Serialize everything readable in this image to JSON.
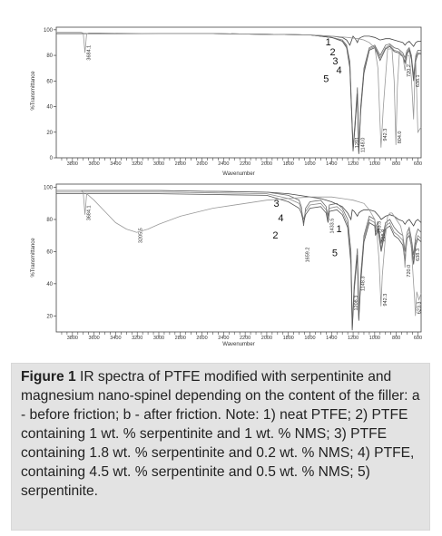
{
  "figure": {
    "caption_label": "Figure 1",
    "caption_text": " IR spectra of PTFE modified with serpentinite and magnesium nano-spinel depending on the content of the filler: a - before friction; b - after friction. Note: 1) neat PTFE; 2) PTFE containing 1 wt. % serpentinite and 1 wt. % NMS; 3) PTFE containing 1.8 wt. % serpentinite and 0.2 wt. % NMS; 4) PTFE, containing 4.5 wt. % serpentinite and 0.5 wt. % NMS; 5) serpentinite."
  },
  "chart_data": [
    {
      "type": "line",
      "panel": "a",
      "xlabel": "Wavenumber",
      "ylabel": "%Transmittance",
      "x_ticks": [
        "3800",
        "3600",
        "3400",
        "3200",
        "3000",
        "2800",
        "2600",
        "2400",
        "2200",
        "2000",
        "1800",
        "1600",
        "1400",
        "1200",
        "1000",
        "800",
        "600"
      ],
      "y_ticks": [
        "100",
        "80",
        "60",
        "40",
        "20",
        "0"
      ],
      "xlim": [
        3950,
        570
      ],
      "ylim": [
        0,
        102
      ],
      "grid": false,
      "peak_labels": [
        {
          "x": 3684,
          "y": 82,
          "text": "3684.1"
        },
        {
          "x": 1201,
          "y": 12,
          "text": "1201"
        },
        {
          "x": 1148,
          "y": 10,
          "text": "1148.0"
        },
        {
          "x": 942,
          "y": 18,
          "text": "942.3"
        },
        {
          "x": 804,
          "y": 16,
          "text": "804.0"
        },
        {
          "x": 720,
          "y": 68,
          "text": "720.2"
        },
        {
          "x": 638,
          "y": 60,
          "text": "638.1"
        }
      ],
      "curve_labels": [
        {
          "text": "1",
          "x": 1430,
          "y": 88
        },
        {
          "text": "2",
          "x": 1390,
          "y": 80
        },
        {
          "text": "3",
          "x": 1365,
          "y": 73
        },
        {
          "text": "4",
          "x": 1330,
          "y": 66
        },
        {
          "text": "5",
          "x": 1450,
          "y": 59
        }
      ],
      "series": [
        {
          "x": [
            3950,
            3800,
            3700,
            3684,
            3660,
            3500,
            3000,
            2500,
            2000,
            1600,
            1400,
            1300,
            1260,
            1230,
            1201,
            1180,
            1160,
            1148,
            1130,
            1100,
            1050,
            1000,
            950,
            900,
            860,
            820,
            780,
            740,
            720,
            700,
            680,
            660,
            640,
            620,
            600,
            570
          ],
          "y": [
            97,
            97,
            97,
            97,
            97,
            97,
            97,
            97,
            96.5,
            96,
            95,
            94,
            92,
            88,
            95,
            93,
            90,
            93,
            94,
            95,
            95,
            94,
            92,
            93,
            93,
            92,
            91,
            90,
            88,
            90,
            91,
            89,
            87,
            90,
            91,
            91
          ]
        },
        {
          "x": [
            3950,
            3500,
            3000,
            2500,
            2000,
            1600,
            1400,
            1300,
            1260,
            1230,
            1201,
            1180,
            1160,
            1148,
            1130,
            1100,
            1050,
            1000,
            950,
            900,
            860,
            820,
            780,
            740,
            720,
            700,
            680,
            660,
            640,
            620,
            600,
            570
          ],
          "y": [
            97,
            97,
            97,
            97,
            96.5,
            96,
            94,
            92,
            88,
            75,
            8,
            30,
            55,
            5,
            40,
            70,
            86,
            88,
            80,
            88,
            89,
            86,
            85,
            82,
            78,
            84,
            86,
            80,
            64,
            80,
            84,
            84
          ]
        },
        {
          "x": [
            3950,
            3500,
            3000,
            2500,
            2000,
            1600,
            1400,
            1300,
            1260,
            1230,
            1201,
            1180,
            1160,
            1148,
            1130,
            1100,
            1050,
            1000,
            950,
            900,
            860,
            820,
            780,
            740,
            720,
            700,
            680,
            660,
            640,
            620,
            600,
            570
          ],
          "y": [
            97,
            97,
            97,
            97,
            96.5,
            96,
            94,
            92,
            87,
            72,
            6,
            28,
            52,
            4,
            38,
            68,
            85,
            87,
            78,
            86,
            88,
            84,
            83,
            80,
            75,
            82,
            85,
            78,
            62,
            78,
            82,
            82
          ]
        },
        {
          "x": [
            3950,
            3500,
            3000,
            2500,
            2000,
            1600,
            1400,
            1300,
            1260,
            1230,
            1201,
            1180,
            1160,
            1148,
            1130,
            1100,
            1050,
            1000,
            950,
            900,
            860,
            820,
            780,
            740,
            720,
            700,
            680,
            660,
            640,
            620,
            600,
            570
          ],
          "y": [
            97,
            97,
            97,
            97,
            96.5,
            96,
            94,
            91,
            86,
            70,
            5,
            26,
            50,
            3,
            36,
            66,
            84,
            86,
            76,
            85,
            87,
            83,
            82,
            79,
            74,
            81,
            84,
            77,
            60,
            76,
            81,
            81
          ]
        },
        {
          "x": [
            3950,
            3800,
            3720,
            3700,
            3684,
            3668,
            3650,
            3550,
            3000,
            2500,
            2000,
            1600,
            1400,
            1250,
            1150,
            1100,
            1050,
            1000,
            970,
            942,
            920,
            880,
            840,
            820,
            804,
            790,
            770,
            740,
            720,
            700,
            680,
            660,
            640,
            630,
            620,
            600,
            570
          ],
          "y": [
            98,
            98,
            98,
            97.5,
            82,
            97,
            97.5,
            97.5,
            97,
            97,
            96.5,
            96,
            95,
            94,
            93,
            92,
            90,
            86,
            70,
            8,
            40,
            85,
            85,
            60,
            10,
            55,
            83,
            80,
            68,
            80,
            80,
            62,
            30,
            60,
            75,
            20,
            24
          ]
        }
      ]
    },
    {
      "type": "line",
      "panel": "b",
      "xlabel": "Wavenumber",
      "ylabel": "%Transmittance",
      "x_ticks": [
        "3800",
        "3600",
        "3400",
        "3200",
        "3000",
        "2800",
        "2600",
        "2400",
        "2200",
        "2000",
        "1800",
        "1600",
        "1400",
        "1200",
        "1000",
        "800",
        "600"
      ],
      "y_ticks": [
        "100",
        "80",
        "60",
        "40",
        "20"
      ],
      "xlim": [
        3950,
        570
      ],
      "ylim": [
        10,
        102
      ],
      "grid": false,
      "peak_labels": [
        {
          "x": 3684,
          "y": 84,
          "text": "3684.1"
        },
        {
          "x": 3205,
          "y": 70,
          "text": "3205.5"
        },
        {
          "x": 1659,
          "y": 58,
          "text": "1659.2"
        },
        {
          "x": 1433,
          "y": 76,
          "text": "1433.5"
        },
        {
          "x": 1208,
          "y": 28,
          "text": "1208.3"
        },
        {
          "x": 1148,
          "y": 40,
          "text": "1148.3"
        },
        {
          "x": 993,
          "y": 75,
          "text": "993.3"
        },
        {
          "x": 958,
          "y": 70,
          "text": "958.9"
        },
        {
          "x": 942,
          "y": 30,
          "text": "942.3"
        },
        {
          "x": 720,
          "y": 48,
          "text": "720.0"
        },
        {
          "x": 638,
          "y": 58,
          "text": "638.3"
        },
        {
          "x": 623,
          "y": 25,
          "text": "623.3"
        }
      ],
      "curve_labels": [
        {
          "text": "3",
          "x": 1910,
          "y": 88
        },
        {
          "text": "4",
          "x": 1870,
          "y": 79
        },
        {
          "text": "2",
          "x": 1920,
          "y": 68
        },
        {
          "text": "1",
          "x": 1330,
          "y": 72
        },
        {
          "text": "5",
          "x": 1370,
          "y": 57
        }
      ],
      "series": [
        {
          "x": [
            3950,
            3700,
            3500,
            3000,
            2500,
            2000,
            1800,
            1700,
            1600,
            1500,
            1400,
            1300,
            1250,
            1220,
            1208,
            1190,
            1160,
            1148,
            1130,
            1100,
            1050,
            1000,
            960,
            940,
            900,
            860,
            820,
            780,
            740,
            720,
            700,
            680,
            660,
            640,
            620,
            600,
            570
          ],
          "y": [
            98,
            98,
            98,
            98,
            97.5,
            97,
            96,
            95,
            94,
            93,
            91,
            88,
            84,
            80,
            86,
            85,
            82,
            84,
            85,
            86,
            86,
            85,
            82,
            80,
            82,
            83,
            82,
            80,
            79,
            77,
            79,
            80,
            78,
            76,
            79,
            80,
            78
          ]
        },
        {
          "x": [
            3950,
            3700,
            3500,
            3000,
            2500,
            2000,
            1800,
            1700,
            1680,
            1659,
            1640,
            1600,
            1500,
            1450,
            1433,
            1420,
            1350,
            1300,
            1250,
            1220,
            1208,
            1190,
            1160,
            1148,
            1130,
            1100,
            1050,
            1000,
            993,
            970,
            958,
            940,
            900,
            860,
            820,
            780,
            740,
            720,
            700,
            680,
            660,
            640,
            620,
            600,
            570
          ],
          "y": [
            98,
            98,
            98,
            98,
            97.5,
            97,
            95,
            92,
            88,
            76,
            87,
            91,
            92,
            88,
            82,
            89,
            90,
            87,
            80,
            60,
            14,
            40,
            62,
            20,
            45,
            70,
            82,
            80,
            75,
            78,
            72,
            65,
            78,
            80,
            75,
            72,
            70,
            60,
            72,
            75,
            68,
            58,
            70,
            74,
            72
          ]
        },
        {
          "x": [
            3950,
            3700,
            3500,
            3000,
            2500,
            2000,
            1800,
            1700,
            1680,
            1659,
            1640,
            1600,
            1500,
            1450,
            1433,
            1420,
            1350,
            1300,
            1250,
            1220,
            1208,
            1190,
            1160,
            1148,
            1130,
            1100,
            1050,
            1000,
            993,
            970,
            958,
            940,
            900,
            860,
            820,
            780,
            740,
            720,
            700,
            680,
            660,
            640,
            620,
            600,
            570
          ],
          "y": [
            97,
            97,
            97,
            97,
            96.5,
            96,
            93,
            90,
            86,
            80,
            85,
            89,
            90,
            86,
            80,
            87,
            88,
            85,
            77,
            55,
            12,
            38,
            60,
            18,
            42,
            68,
            80,
            78,
            72,
            76,
            70,
            62,
            76,
            78,
            72,
            70,
            67,
            56,
            70,
            72,
            65,
            55,
            66,
            70,
            68
          ]
        },
        {
          "x": [
            3950,
            3700,
            3500,
            3000,
            2500,
            2000,
            1800,
            1700,
            1680,
            1659,
            1640,
            1600,
            1500,
            1450,
            1433,
            1420,
            1350,
            1300,
            1250,
            1220,
            1208,
            1190,
            1160,
            1148,
            1130,
            1100,
            1050,
            1000,
            993,
            970,
            958,
            940,
            900,
            860,
            820,
            780,
            740,
            720,
            700,
            680,
            660,
            640,
            620,
            600,
            570
          ],
          "y": [
            96,
            96,
            96,
            96,
            95.5,
            95,
            91,
            87,
            84,
            78,
            83,
            87,
            88,
            84,
            78,
            85,
            86,
            83,
            75,
            52,
            11,
            36,
            58,
            17,
            40,
            66,
            78,
            76,
            70,
            74,
            68,
            60,
            74,
            76,
            70,
            68,
            64,
            54,
            68,
            70,
            63,
            52,
            64,
            68,
            66
          ]
        },
        {
          "x": [
            3950,
            3800,
            3720,
            3700,
            3684,
            3668,
            3600,
            3500,
            3400,
            3300,
            3205,
            3100,
            3000,
            2800,
            2500,
            2200,
            2000,
            1800,
            1600,
            1400,
            1300,
            1200,
            1100,
            1050,
            1000,
            980,
            960,
            942,
            930,
            900,
            880,
            860,
            840,
            820,
            800,
            780,
            760,
            740,
            720,
            700,
            680,
            660,
            640,
            630,
            623,
            610,
            590,
            570
          ],
          "y": [
            98,
            98,
            98,
            97,
            83,
            96,
            92,
            85,
            78,
            74,
            72,
            74,
            77,
            82,
            87,
            90,
            92,
            93,
            94,
            94,
            93,
            92,
            90,
            86,
            80,
            72,
            55,
            26,
            45,
            70,
            82,
            84,
            84,
            82,
            80,
            78,
            76,
            70,
            50,
            72,
            74,
            62,
            40,
            30,
            20,
            35,
            30,
            34
          ]
        }
      ]
    }
  ]
}
